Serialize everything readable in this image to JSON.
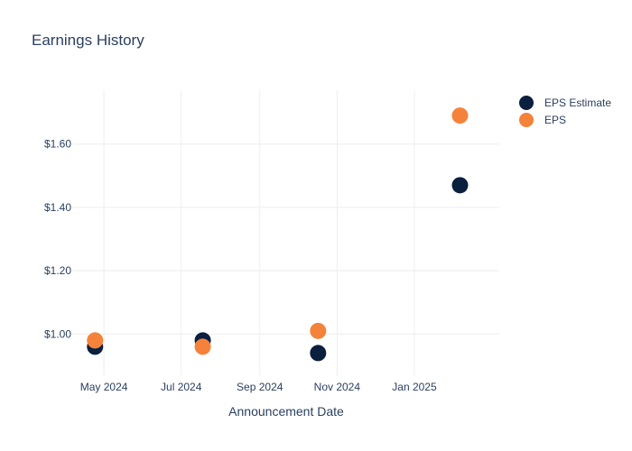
{
  "chart_data": {
    "type": "scatter",
    "title": "Earnings History",
    "xlabel": "Announcement Date",
    "ylabel": "",
    "x_ticks": [
      {
        "date": "2024-05-01",
        "label": "May 2024"
      },
      {
        "date": "2024-07-01",
        "label": "Jul 2024"
      },
      {
        "date": "2024-09-01",
        "label": "Sep 2024"
      },
      {
        "date": "2024-11-01",
        "label": "Nov 2024"
      },
      {
        "date": "2025-01-01",
        "label": "Jan 2025"
      }
    ],
    "y_ticks": [
      {
        "value": 1.0,
        "label": "$1.00"
      },
      {
        "value": 1.2,
        "label": "$1.20"
      },
      {
        "value": 1.4,
        "label": "$1.40"
      },
      {
        "value": 1.6,
        "label": "$1.60"
      }
    ],
    "xlim": [
      "2024-04-06",
      "2025-03-09"
    ],
    "ylim": [
      0.87,
      1.77
    ],
    "grid": true,
    "legend_position": "top-right",
    "series": [
      {
        "name": "EPS Estimate",
        "color": "#0b1f3f",
        "points": [
          {
            "x": "2024-04-24",
            "y": 0.96
          },
          {
            "x": "2024-07-18",
            "y": 0.98
          },
          {
            "x": "2024-10-17",
            "y": 0.94
          },
          {
            "x": "2025-02-06",
            "y": 1.47
          }
        ]
      },
      {
        "name": "EPS",
        "color": "#f5823a",
        "points": [
          {
            "x": "2024-04-24",
            "y": 0.98
          },
          {
            "x": "2024-07-18",
            "y": 0.96
          },
          {
            "x": "2024-10-17",
            "y": 1.01
          },
          {
            "x": "2025-02-06",
            "y": 1.69
          }
        ]
      }
    ]
  }
}
